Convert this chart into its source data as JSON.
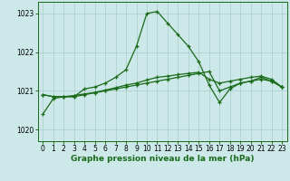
{
  "xlabel": "Graphe pression niveau de la mer (hPa)",
  "background_color": "#cce8e8",
  "grid_color": "#aacccc",
  "line_color": "#1a6b1a",
  "ylim": [
    1019.7,
    1023.3
  ],
  "yticks": [
    1020,
    1021,
    1022,
    1023
  ],
  "xlim": [
    -0.5,
    23.5
  ],
  "xticks": [
    0,
    1,
    2,
    3,
    4,
    5,
    6,
    7,
    8,
    9,
    10,
    11,
    12,
    13,
    14,
    15,
    16,
    17,
    18,
    19,
    20,
    21,
    22,
    23
  ],
  "series1_x": [
    0,
    1,
    2,
    3,
    4,
    5,
    6,
    7,
    8,
    9,
    10,
    11,
    12,
    13,
    14,
    15,
    16,
    17,
    18,
    19,
    20,
    21,
    22,
    23
  ],
  "series1_y": [
    1020.4,
    1020.8,
    1020.85,
    1020.85,
    1021.05,
    1021.1,
    1021.2,
    1021.35,
    1021.55,
    1022.15,
    1023.0,
    1023.05,
    1022.75,
    1022.45,
    1022.15,
    1021.75,
    1021.15,
    1020.7,
    1021.05,
    1021.2,
    1021.25,
    1021.35,
    1021.25,
    1021.1
  ],
  "series2_x": [
    0,
    1,
    2,
    3,
    4,
    5,
    6,
    7,
    8,
    9,
    10,
    11,
    12,
    13,
    14,
    15,
    16,
    17,
    18,
    19,
    20,
    21,
    22,
    23
  ],
  "series2_y": [
    1020.9,
    1020.85,
    1020.85,
    1020.85,
    1020.9,
    1020.95,
    1021.0,
    1021.05,
    1021.1,
    1021.15,
    1021.2,
    1021.25,
    1021.3,
    1021.35,
    1021.4,
    1021.45,
    1021.5,
    1021.0,
    1021.1,
    1021.2,
    1021.25,
    1021.3,
    1021.25,
    1021.1
  ],
  "series3_x": [
    0,
    1,
    2,
    3,
    4,
    5,
    6,
    7,
    8,
    9,
    10,
    11,
    12,
    13,
    14,
    15,
    16,
    17,
    18,
    19,
    20,
    21,
    22,
    23
  ],
  "series3_y": [
    1020.9,
    1020.85,
    1020.85,
    1020.88,
    1020.92,
    1020.96,
    1021.02,
    1021.08,
    1021.15,
    1021.2,
    1021.28,
    1021.35,
    1021.38,
    1021.42,
    1021.45,
    1021.48,
    1021.3,
    1021.2,
    1021.25,
    1021.3,
    1021.35,
    1021.38,
    1021.3,
    1021.1
  ],
  "marker": "+",
  "tick_fontsize": 5.5,
  "xlabel_fontsize": 6.5,
  "xlabel_color": "#1a6b1a"
}
